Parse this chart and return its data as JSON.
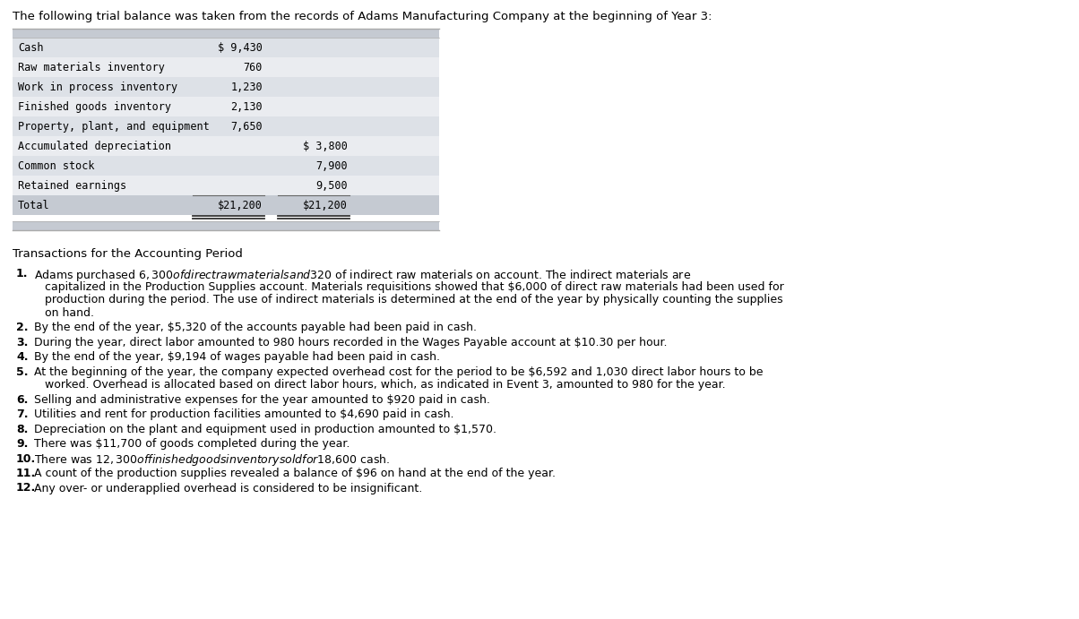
{
  "header": "The following trial balance was taken from the records of Adams Manufacturing Company at the beginning of Year 3:",
  "table_rows": [
    {
      "account": "Cash",
      "debit": "$ 9,430",
      "credit": ""
    },
    {
      "account": "Raw materials inventory",
      "debit": "760",
      "credit": ""
    },
    {
      "account": "Work in process inventory",
      "debit": "1,230",
      "credit": ""
    },
    {
      "account": "Finished goods inventory",
      "debit": "2,130",
      "credit": ""
    },
    {
      "account": "Property, plant, and equipment",
      "debit": "7,650",
      "credit": ""
    },
    {
      "account": "Accumulated depreciation",
      "debit": "",
      "credit": "$ 3,800"
    },
    {
      "account": "Common stock",
      "debit": "",
      "credit": "7,900"
    },
    {
      "account": "Retained earnings",
      "debit": "",
      "credit": "9,500"
    },
    {
      "account": "Total",
      "debit": "$21,200",
      "credit": "$21,200"
    }
  ],
  "section_title": "Transactions for the Accounting Period",
  "transactions": [
    {
      "num": "1.",
      "lines": [
        "Adams purchased $6,300 of direct raw materials and $320 of indirect raw materials on account. The indirect materials are",
        "   capitalized in the Production Supplies account. Materials requisitions showed that $6,000 of direct raw materials had been used for",
        "   production during the period. The use of indirect materials is determined at the end of the year by physically counting the supplies",
        "   on hand."
      ]
    },
    {
      "num": "2.",
      "lines": [
        "By the end of the year, $5,320 of the accounts payable had been paid in cash."
      ]
    },
    {
      "num": "3.",
      "lines": [
        "During the year, direct labor amounted to 980 hours recorded in the Wages Payable account at $10.30 per hour."
      ]
    },
    {
      "num": "4.",
      "lines": [
        "By the end of the year, $9,194 of wages payable had been paid in cash."
      ]
    },
    {
      "num": "5.",
      "lines": [
        "At the beginning of the year, the company expected overhead cost for the period to be $6,592 and 1,030 direct labor hours to be",
        "   worked. Overhead is allocated based on direct labor hours, which, as indicated in Event 3, amounted to 980 for the year."
      ]
    },
    {
      "num": "6.",
      "lines": [
        "Selling and administrative expenses for the year amounted to $920 paid in cash."
      ]
    },
    {
      "num": "7.",
      "lines": [
        "Utilities and rent for production facilities amounted to $4,690 paid in cash."
      ]
    },
    {
      "num": "8.",
      "lines": [
        "Depreciation on the plant and equipment used in production amounted to $1,570."
      ]
    },
    {
      "num": "9.",
      "lines": [
        "There was $11,700 of goods completed during the year."
      ]
    },
    {
      "num": "10.",
      "lines": [
        "There was $12,300 of finished goods inventory sold for $18,600 cash."
      ]
    },
    {
      "num": "11.",
      "lines": [
        "A count of the production supplies revealed a balance of $96 on hand at the end of the year."
      ]
    },
    {
      "num": "12.",
      "lines": [
        "Any over- or underapplied overhead is considered to be insignificant."
      ]
    }
  ],
  "bg_color": "#ffffff",
  "table_header_bg": "#c5cad2",
  "table_row_bg_alt1": "#dde1e7",
  "table_row_bg_alt2": "#eaecf0",
  "table_total_bg": "#c5cad2",
  "border_color": "#aaaaaa"
}
